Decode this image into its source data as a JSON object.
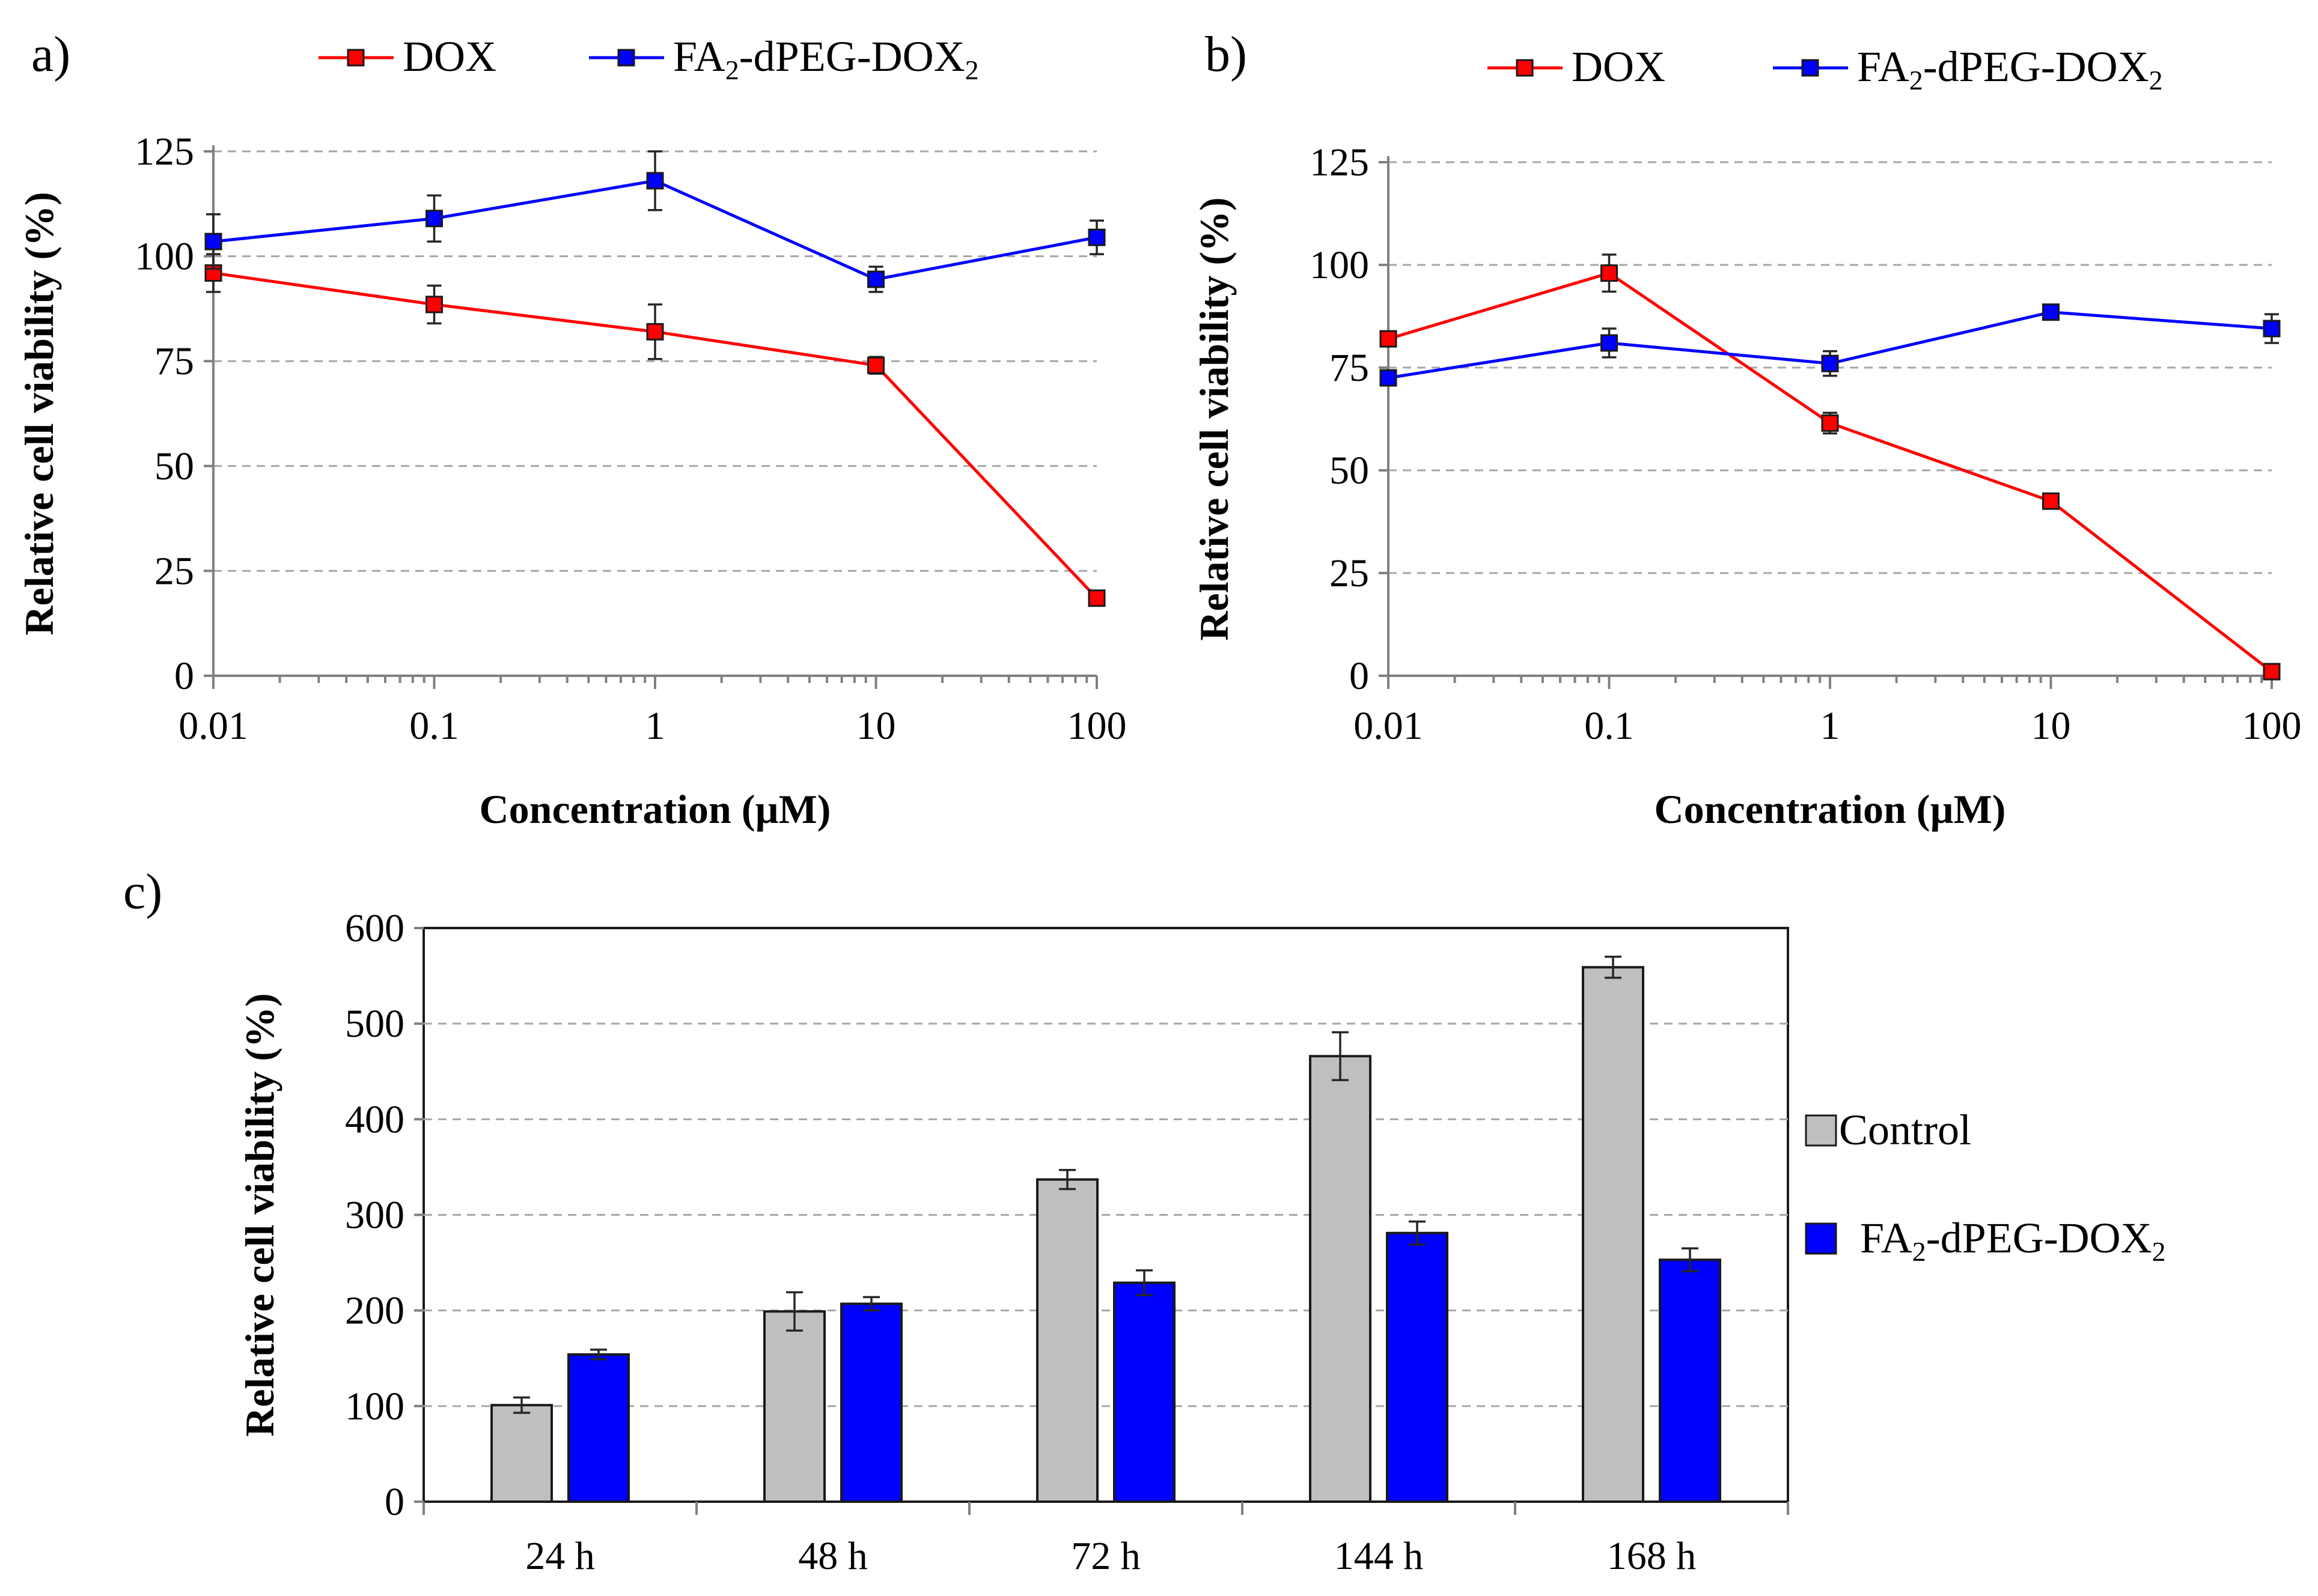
{
  "chart_data": [
    {
      "panel": "a)",
      "type": "line",
      "xscale": "log",
      "x": [
        0.01,
        0.1,
        1,
        10,
        100
      ],
      "x_tick_labels": [
        "0.01",
        "0.1",
        "1",
        "10",
        "100"
      ],
      "ylim": [
        0,
        125
      ],
      "y_ticks": [
        0,
        25,
        50,
        75,
        100,
        125
      ],
      "xlabel": "Concentration (µM)",
      "ylabel": "Relative cell viability (%)",
      "grid": true,
      "legend_position": "top",
      "series": [
        {
          "name": "DOX",
          "name_parts": [
            "DOX"
          ],
          "color": "#ff0000",
          "values": [
            96,
            88.5,
            82,
            74,
            18.5
          ],
          "errors": [
            4.5,
            4.5,
            6.5,
            2,
            1
          ]
        },
        {
          "name": "FA2-dPEG-DOX2",
          "name_parts": [
            "FA",
            "2",
            "-dPEG-DOX",
            "2"
          ],
          "color": "#0000ff",
          "values": [
            103.5,
            109,
            118,
            94.5,
            104.5
          ],
          "errors": [
            6.5,
            5.5,
            7,
            3,
            4
          ]
        }
      ]
    },
    {
      "panel": "b)",
      "type": "line",
      "xscale": "log",
      "x": [
        0.01,
        0.1,
        1,
        10,
        100
      ],
      "x_tick_labels": [
        "0.01",
        "0.1",
        "1",
        "10",
        "100"
      ],
      "ylim": [
        0,
        125
      ],
      "y_ticks": [
        0,
        25,
        50,
        75,
        100,
        125
      ],
      "xlabel": "Concentration (µM)",
      "ylabel": "Relative cell viability (%)",
      "grid": true,
      "legend_position": "top",
      "series": [
        {
          "name": "DOX",
          "name_parts": [
            "DOX"
          ],
          "color": "#ff0000",
          "values": [
            82,
            98,
            61.5,
            42.5,
            1
          ],
          "errors": [
            1.5,
            4.5,
            2.5,
            1.5,
            0.5
          ]
        },
        {
          "name": "FA2-dPEG-DOX2",
          "name_parts": [
            "FA",
            "2",
            "-dPEG-DOX",
            "2"
          ],
          "color": "#0000ff",
          "values": [
            72.5,
            81,
            76,
            88.5,
            84.5
          ],
          "errors": [
            1.5,
            3.5,
            3,
            1.5,
            3.5
          ]
        }
      ]
    },
    {
      "panel": "c)",
      "type": "bar",
      "categories": [
        "24 h",
        "48 h",
        "72 h",
        "144 h",
        "168 h"
      ],
      "ylim": [
        0,
        600
      ],
      "y_ticks": [
        0,
        100,
        200,
        300,
        400,
        500,
        600
      ],
      "xlabel": "",
      "ylabel": "Relative cell viability (%)",
      "grid": true,
      "legend_position": "right",
      "series": [
        {
          "name": "Control",
          "name_parts": [
            "Control"
          ],
          "color": "#bfbfbf",
          "values": [
            101,
            199,
            337,
            466,
            559
          ],
          "errors": [
            8,
            20,
            10,
            25,
            11
          ]
        },
        {
          "name": "FA2-dPEG-DOX2",
          "name_parts": [
            "FA",
            "2",
            "-dPEG-DOX",
            "2"
          ],
          "color": "#0000ff",
          "values": [
            154,
            207,
            229,
            281,
            253
          ],
          "errors": [
            5,
            7,
            13,
            12,
            12
          ]
        }
      ]
    }
  ]
}
